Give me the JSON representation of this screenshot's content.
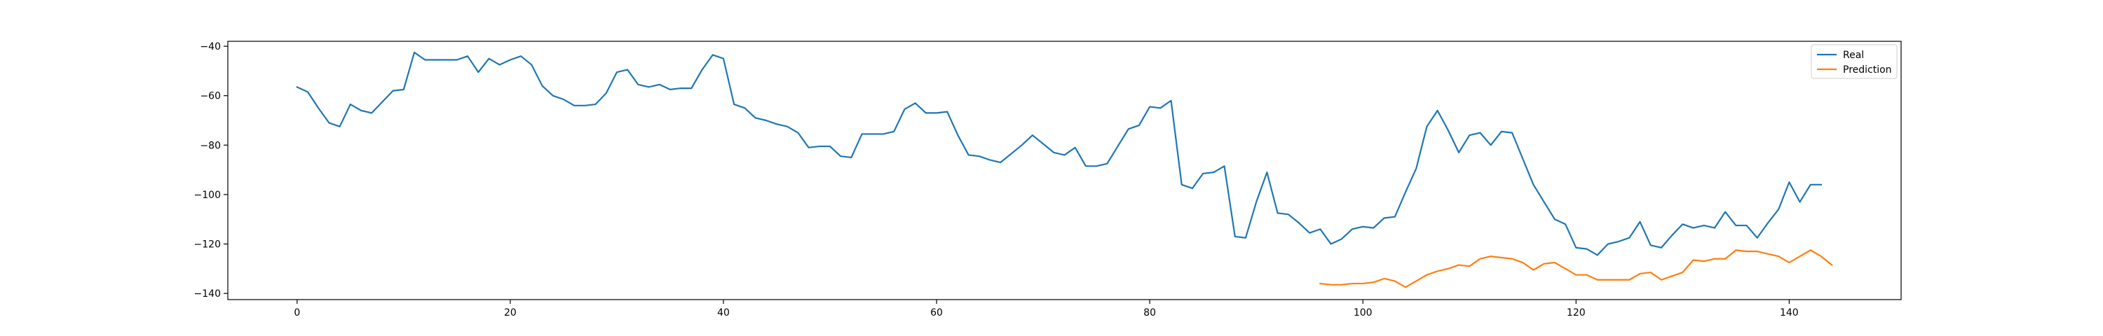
{
  "chart_data": {
    "type": "line",
    "title": "",
    "xlabel": "",
    "ylabel": "",
    "xlim": [
      -6.5,
      150.5
    ],
    "ylim": [
      -142.5,
      -38
    ],
    "grid": false,
    "legend_position": "top-right",
    "xticks": [
      0,
      20,
      40,
      60,
      80,
      100,
      120,
      140
    ],
    "xtick_labels": [
      "0",
      "20",
      "40",
      "60",
      "80",
      "100",
      "120",
      "140"
    ],
    "yticks": [
      -40,
      -60,
      -80,
      -100,
      -120,
      -140
    ],
    "ytick_labels": [
      "−40",
      "−60",
      "−80",
      "−100",
      "−120",
      "−140"
    ],
    "series": [
      {
        "name": "Real",
        "color": "#1f77b4",
        "x_start": 0,
        "values": [
          -56.5,
          -58.5,
          -65,
          -71,
          -72.5,
          -63.5,
          -66,
          -67,
          -62.5,
          -58,
          -57.5,
          -42.5,
          -45.5,
          -45.5,
          -45.5,
          -45.5,
          -44,
          -50.5,
          -45,
          -47.5,
          -45.5,
          -44,
          -47.5,
          -56,
          -60,
          -61.5,
          -64,
          -64,
          -63.5,
          -59,
          -50.5,
          -49.5,
          -55.5,
          -56.5,
          -55.5,
          -57.5,
          -57,
          -57,
          -49.5,
          -43.5,
          -45,
          -63.5,
          -65,
          -69,
          -70,
          -71.5,
          -72.5,
          -75,
          -81,
          -80.5,
          -80.5,
          -84.5,
          -85,
          -75.5,
          -75.5,
          -75.5,
          -74.5,
          -65.5,
          -63,
          -67,
          -67,
          -66.5,
          -76,
          -84,
          -84.5,
          -86,
          -87,
          -83.5,
          -80,
          -76,
          -79.5,
          -83,
          -84,
          -81,
          -88.5,
          -88.5,
          -87.5,
          -80.5,
          -73.5,
          -72,
          -64.5,
          -65,
          -62,
          -96,
          -97.5,
          -91.5,
          -91,
          -88.5,
          -117,
          -117.5,
          -103,
          -91,
          -107.5,
          -108,
          -111.5,
          -115.5,
          -114,
          -120,
          -118,
          -114,
          -113,
          -113.5,
          -109.5,
          -109,
          -99,
          -89.5,
          -72.5,
          -66,
          -74,
          -83,
          -76,
          -75,
          -80,
          -74.5,
          -75,
          -85.5,
          -96,
          -103,
          -110,
          -112,
          -121.5,
          -122,
          -124.5,
          -120,
          -119,
          -117.5,
          -111,
          -120.5,
          -121.5,
          -116.5,
          -112,
          -113.5,
          -112.5,
          -113.5,
          -107,
          -112.5,
          -112.5,
          -117.5,
          -111.5,
          -106,
          -95,
          -103,
          -96,
          -96
        ]
      },
      {
        "name": "Prediction",
        "color": "#ff7f0e",
        "x_start": 96,
        "values": [
          -136,
          -136.5,
          -136.5,
          -136,
          -136,
          -135.5,
          -134,
          -135,
          -137.5,
          -135,
          -132.5,
          -131,
          -130,
          -128.5,
          -129,
          -126,
          -125,
          -125.5,
          -126,
          -127.5,
          -130.5,
          -128,
          -127.5,
          -130,
          -132.5,
          -132.5,
          -134.5,
          -134.5,
          -134.5,
          -134.5,
          -132,
          -131.5,
          -134.5,
          -133,
          -131.5,
          -126.5,
          -127,
          -126,
          -126,
          -122.5,
          -123,
          -123,
          -124,
          -125,
          -127.5,
          -125,
          -122.5,
          -125,
          -128.5
        ]
      }
    ]
  }
}
